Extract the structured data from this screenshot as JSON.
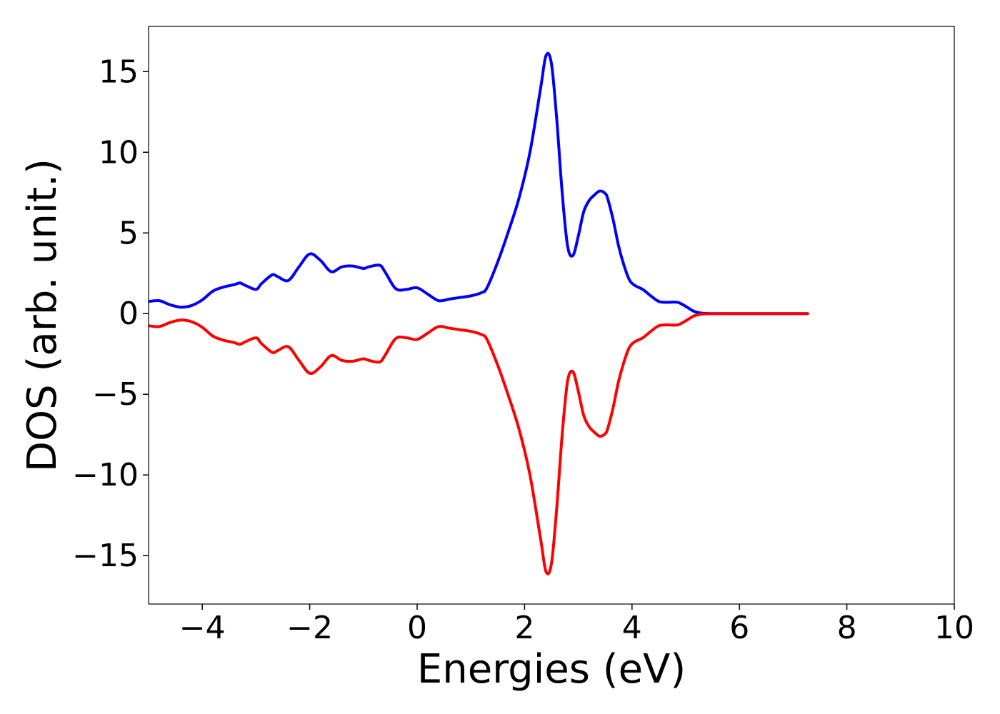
{
  "chart_data": {
    "type": "line",
    "title": "",
    "xlabel": "Energies (eV)",
    "ylabel": "DOS (arb. unit.)",
    "xlim": [
      -5,
      10
    ],
    "ylim": [
      -18,
      17.8
    ],
    "xticks": [
      -4,
      -2,
      0,
      2,
      4,
      6,
      8,
      10
    ],
    "xtick_labels": [
      "−4",
      "−2",
      "0",
      "2",
      "4",
      "6",
      "8",
      "10"
    ],
    "yticks": [
      -15,
      -10,
      -5,
      0,
      5,
      10,
      15
    ],
    "ytick_labels": [
      "−15",
      "−10",
      "−5",
      "0",
      "5",
      "10",
      "15"
    ],
    "grid": false,
    "x": [
      -5.0,
      -4.8,
      -4.6,
      -4.4,
      -4.2,
      -4.0,
      -3.8,
      -3.6,
      -3.4,
      -3.3,
      -3.2,
      -3.0,
      -2.9,
      -2.7,
      -2.6,
      -2.4,
      -2.2,
      -2.0,
      -1.8,
      -1.6,
      -1.4,
      -1.2,
      -1.0,
      -0.9,
      -0.7,
      -0.6,
      -0.4,
      -0.2,
      0.0,
      0.2,
      0.4,
      0.6,
      0.8,
      1.0,
      1.2,
      1.3,
      1.5,
      1.7,
      1.9,
      2.1,
      2.3,
      2.4,
      2.5,
      2.6,
      2.7,
      2.8,
      2.9,
      3.0,
      3.1,
      3.2,
      3.3,
      3.4,
      3.5,
      3.55,
      3.65,
      3.75,
      3.85,
      3.95,
      4.05,
      4.2,
      4.35,
      4.5,
      4.65,
      4.85,
      5.0,
      5.15,
      5.3,
      5.6,
      6.0,
      6.5,
      7.0,
      7.27
    ],
    "series": [
      {
        "color": "#0000ff",
        "values": [
          0.75,
          0.8,
          0.55,
          0.4,
          0.5,
          0.85,
          1.4,
          1.65,
          1.8,
          1.9,
          1.75,
          1.5,
          1.85,
          2.4,
          2.3,
          2.05,
          2.9,
          3.7,
          3.3,
          2.6,
          2.9,
          2.95,
          2.8,
          2.9,
          3.0,
          2.6,
          1.55,
          1.5,
          1.6,
          1.2,
          0.8,
          0.9,
          1.0,
          1.1,
          1.3,
          1.6,
          3.2,
          5.1,
          7.2,
          10.0,
          14.0,
          16.0,
          15.5,
          12.0,
          7.5,
          4.2,
          3.6,
          4.8,
          6.3,
          7.0,
          7.35,
          7.6,
          7.45,
          7.1,
          5.8,
          4.2,
          3.0,
          2.1,
          1.75,
          1.5,
          1.1,
          0.75,
          0.7,
          0.7,
          0.45,
          0.15,
          0.03,
          0.0,
          0.0,
          0.0,
          0.0,
          0.0
        ]
      },
      {
        "color": "#ff0000",
        "values": [
          -0.75,
          -0.8,
          -0.55,
          -0.4,
          -0.5,
          -0.85,
          -1.4,
          -1.65,
          -1.8,
          -1.9,
          -1.75,
          -1.5,
          -1.85,
          -2.4,
          -2.3,
          -2.05,
          -2.9,
          -3.7,
          -3.3,
          -2.6,
          -2.9,
          -2.95,
          -2.8,
          -2.9,
          -3.0,
          -2.6,
          -1.55,
          -1.5,
          -1.6,
          -1.2,
          -0.8,
          -0.9,
          -1.0,
          -1.1,
          -1.3,
          -1.6,
          -3.2,
          -5.1,
          -7.2,
          -10.0,
          -14.0,
          -16.0,
          -15.5,
          -12.0,
          -7.5,
          -4.2,
          -3.6,
          -4.8,
          -6.3,
          -7.0,
          -7.35,
          -7.6,
          -7.45,
          -7.1,
          -5.8,
          -4.2,
          -3.0,
          -2.1,
          -1.75,
          -1.5,
          -1.1,
          -0.75,
          -0.7,
          -0.7,
          -0.45,
          -0.15,
          -0.03,
          0.0,
          0.0,
          0.0,
          0.0,
          0.0
        ]
      }
    ]
  }
}
